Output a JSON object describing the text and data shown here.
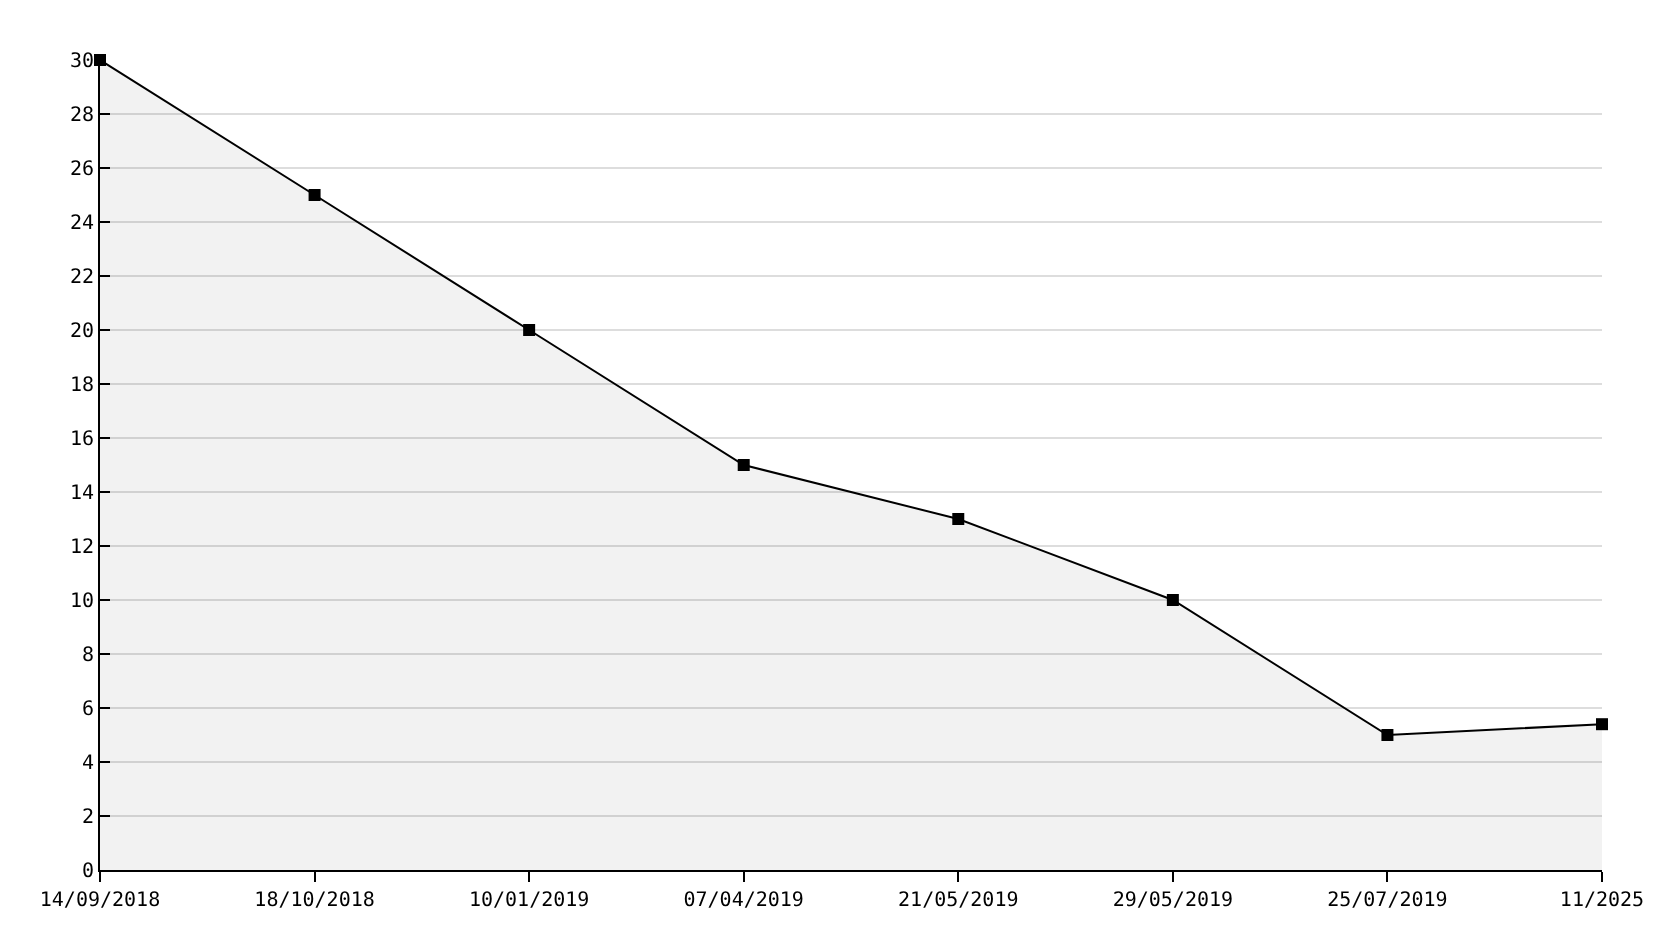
{
  "chart_data": {
    "type": "area",
    "categories": [
      "14/09/2018",
      "18/10/2018",
      "10/01/2019",
      "07/04/2019",
      "21/05/2019",
      "29/05/2019",
      "25/07/2019",
      "11/2025"
    ],
    "series": [
      {
        "color": "#000000",
        "values": [
          30,
          25,
          20,
          15,
          13,
          10,
          5,
          5.4
        ]
      }
    ],
    "ylim": [
      0,
      30
    ],
    "yticks": [
      0,
      2,
      4,
      6,
      8,
      10,
      12,
      14,
      16,
      18,
      20,
      22,
      24,
      26,
      28,
      30
    ],
    "grid": "y",
    "marker": "square",
    "line_style": "solid",
    "legend": false
  }
}
